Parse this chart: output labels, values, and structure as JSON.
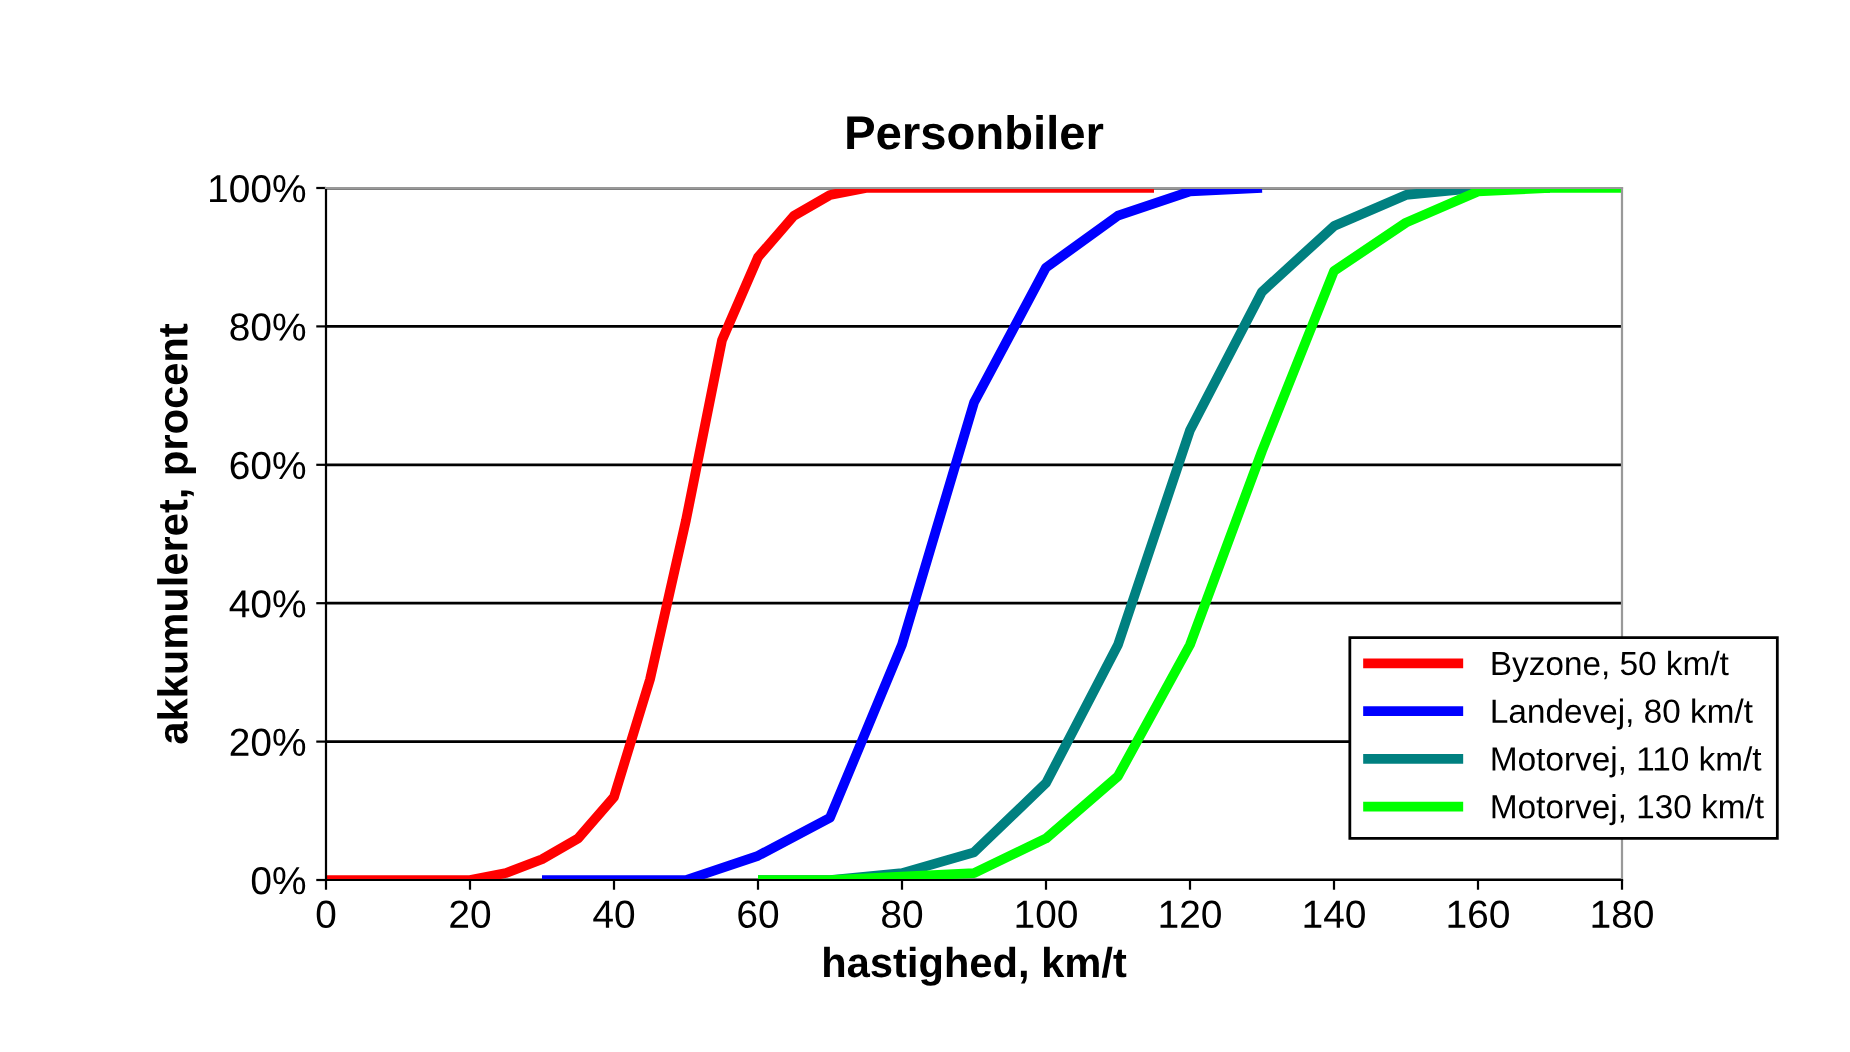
{
  "chart_data": {
    "type": "line",
    "title": "Personbiler",
    "xlabel": "hastighed, km/t",
    "ylabel": "akkumuleret, procent",
    "xlim": [
      0,
      180
    ],
    "xticks": [
      0,
      20,
      40,
      60,
      80,
      100,
      120,
      140,
      160,
      180
    ],
    "ylim": [
      0,
      100
    ],
    "yticks": [
      {
        "value": 0,
        "label": "0%"
      },
      {
        "value": 20,
        "label": "20%"
      },
      {
        "value": 40,
        "label": "40%"
      },
      {
        "value": 60,
        "label": "60%"
      },
      {
        "value": 80,
        "label": "80%"
      },
      {
        "value": 100,
        "label": "100%"
      }
    ],
    "grid": "y",
    "legend": "right",
    "marker": "none",
    "line_style": "solid",
    "series": [
      {
        "name": "Byzone, 50 km/t",
        "color": "#ff0000",
        "x": [
          0,
          5,
          10,
          15,
          20,
          25,
          30,
          35,
          40,
          45,
          50,
          55,
          60,
          65,
          70,
          75,
          80,
          85,
          90,
          95,
          100,
          105,
          110,
          115
        ],
        "values": [
          0,
          0,
          0,
          0,
          0,
          1,
          3,
          6,
          12,
          29,
          52,
          78,
          90,
          96,
          99,
          100,
          100,
          100,
          100,
          100,
          100,
          100,
          100,
          100
        ]
      },
      {
        "name": "Landevej, 80 km/t",
        "color": "#0000ff",
        "x": [
          30,
          40,
          50,
          60,
          70,
          80,
          90,
          100,
          110,
          120,
          130
        ],
        "values": [
          0,
          0,
          0,
          3.5,
          9,
          34,
          69,
          88.5,
          96,
          99.5,
          100
        ]
      },
      {
        "name": "Motorvej, 110 km/t",
        "color": "#008080",
        "x": [
          60,
          70,
          80,
          90,
          100,
          110,
          120,
          130,
          140,
          150,
          160,
          170
        ],
        "values": [
          0,
          0,
          1,
          4,
          14,
          34,
          65,
          85,
          94.5,
          99,
          100,
          100
        ]
      },
      {
        "name": "Motorvej, 130 km/t",
        "color": "#00ff00",
        "x": [
          60,
          70,
          80,
          90,
          100,
          110,
          120,
          130,
          140,
          150,
          160,
          170,
          180
        ],
        "values": [
          0,
          0,
          0.5,
          1,
          6,
          15,
          34,
          62,
          88,
          95,
          99.5,
          100,
          100
        ]
      }
    ]
  }
}
